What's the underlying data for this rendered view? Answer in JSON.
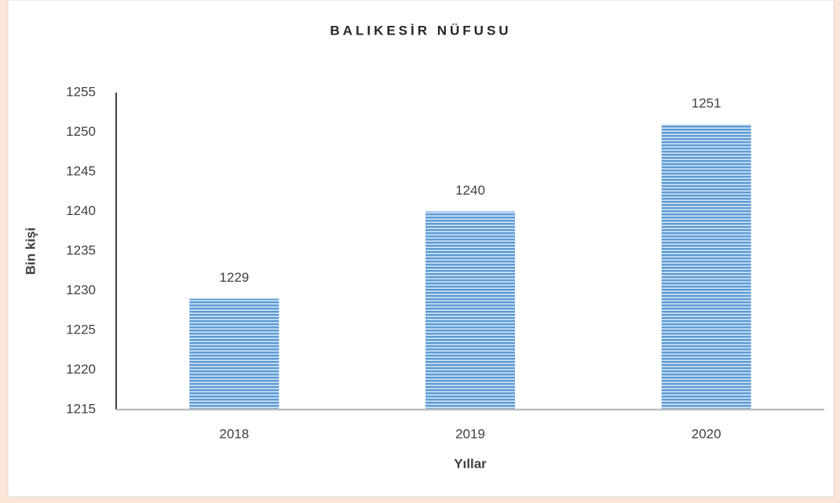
{
  "chart_data": {
    "type": "bar",
    "title": "BALIKESİR NÜFUSU",
    "xlabel": "Yıllar",
    "ylabel": "Bin kişi",
    "categories": [
      "2018",
      "2019",
      "2020"
    ],
    "values": [
      1229,
      1240,
      1251
    ],
    "color": "#5b9bd5",
    "ylim": [
      1215,
      1255
    ],
    "yticks": [
      1215,
      1220,
      1225,
      1230,
      1235,
      1240,
      1245,
      1250,
      1255
    ],
    "grid": false
  }
}
